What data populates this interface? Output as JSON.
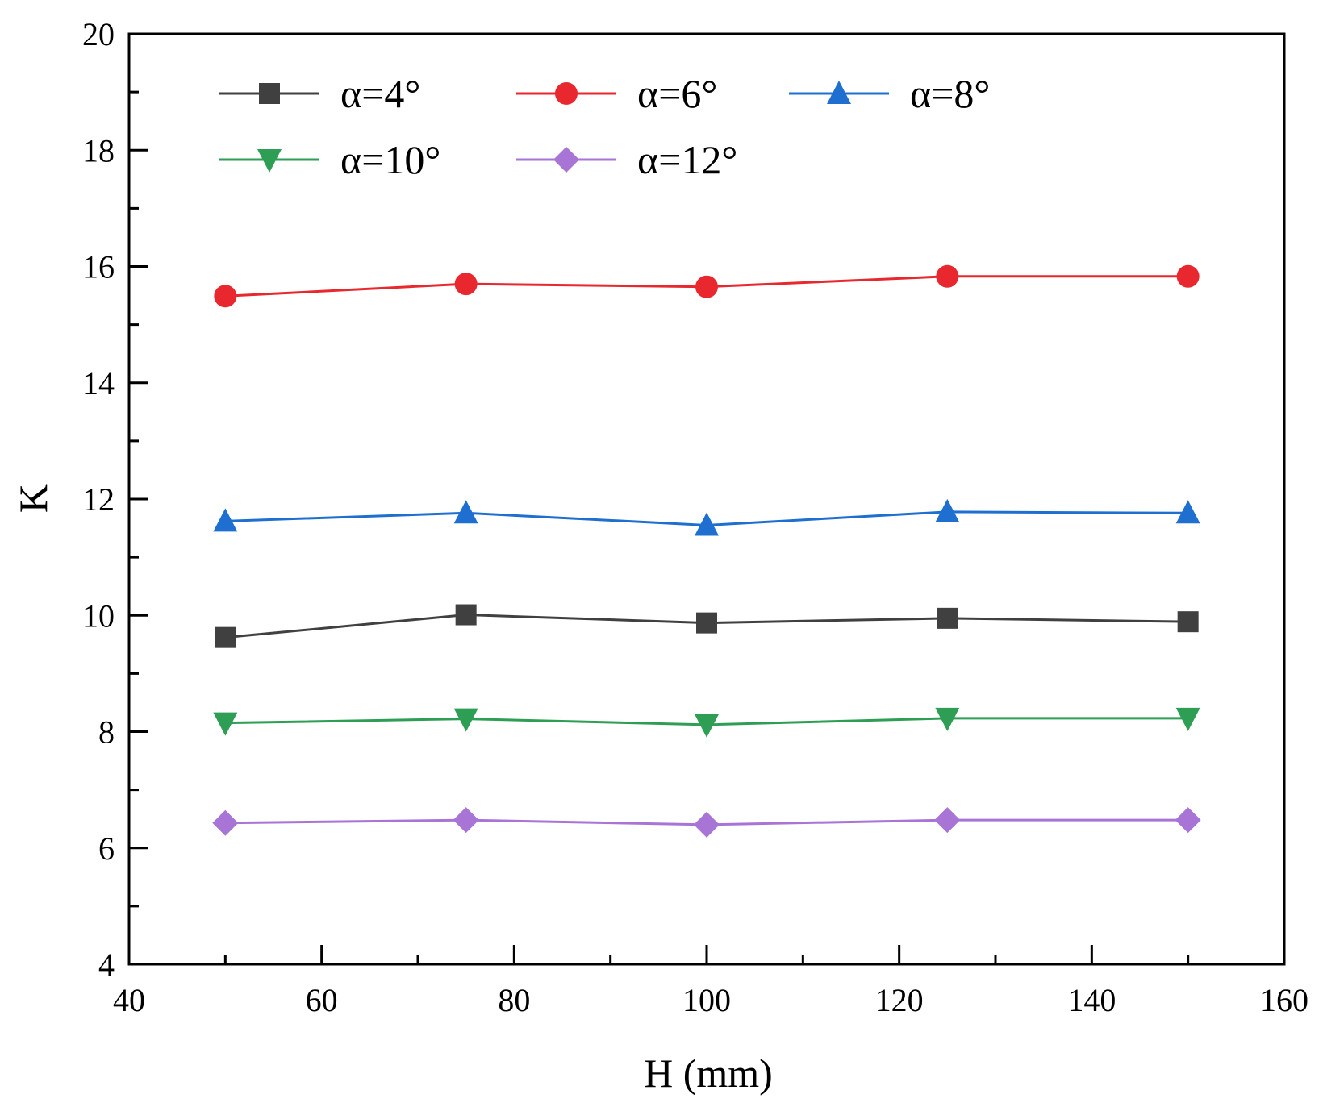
{
  "chart_data": {
    "type": "line",
    "title": "",
    "xlabel": "H (mm)",
    "ylabel": "K",
    "xlim": [
      40,
      160
    ],
    "ylim": [
      4,
      20
    ],
    "xticks": [
      "40",
      "60",
      "80",
      "100",
      "120",
      "140",
      "160"
    ],
    "yticks": [
      "4",
      "6",
      "8",
      "10",
      "12",
      "14",
      "16",
      "18",
      "20"
    ],
    "grid": false,
    "legend_position": "top-left",
    "x": [
      50,
      75,
      100,
      125,
      150
    ],
    "series": [
      {
        "name": "α=4°",
        "marker": "square",
        "color": "#404040",
        "values": [
          9.62,
          10.01,
          9.87,
          9.95,
          9.89
        ]
      },
      {
        "name": "α=6°",
        "marker": "circle",
        "color": "#e8282e",
        "values": [
          15.49,
          15.7,
          15.65,
          15.83,
          15.83
        ]
      },
      {
        "name": "α=8°",
        "marker": "triangle-up",
        "color": "#1f6fd0",
        "values": [
          11.62,
          11.76,
          11.55,
          11.78,
          11.76
        ]
      },
      {
        "name": "α=10°",
        "marker": "triangle-down",
        "color": "#2e9e55",
        "values": [
          8.15,
          8.22,
          8.12,
          8.23,
          8.23
        ]
      },
      {
        "name": "α=12°",
        "marker": "diamond",
        "color": "#a874d6",
        "values": [
          6.43,
          6.48,
          6.4,
          6.48,
          6.48
        ]
      }
    ]
  }
}
